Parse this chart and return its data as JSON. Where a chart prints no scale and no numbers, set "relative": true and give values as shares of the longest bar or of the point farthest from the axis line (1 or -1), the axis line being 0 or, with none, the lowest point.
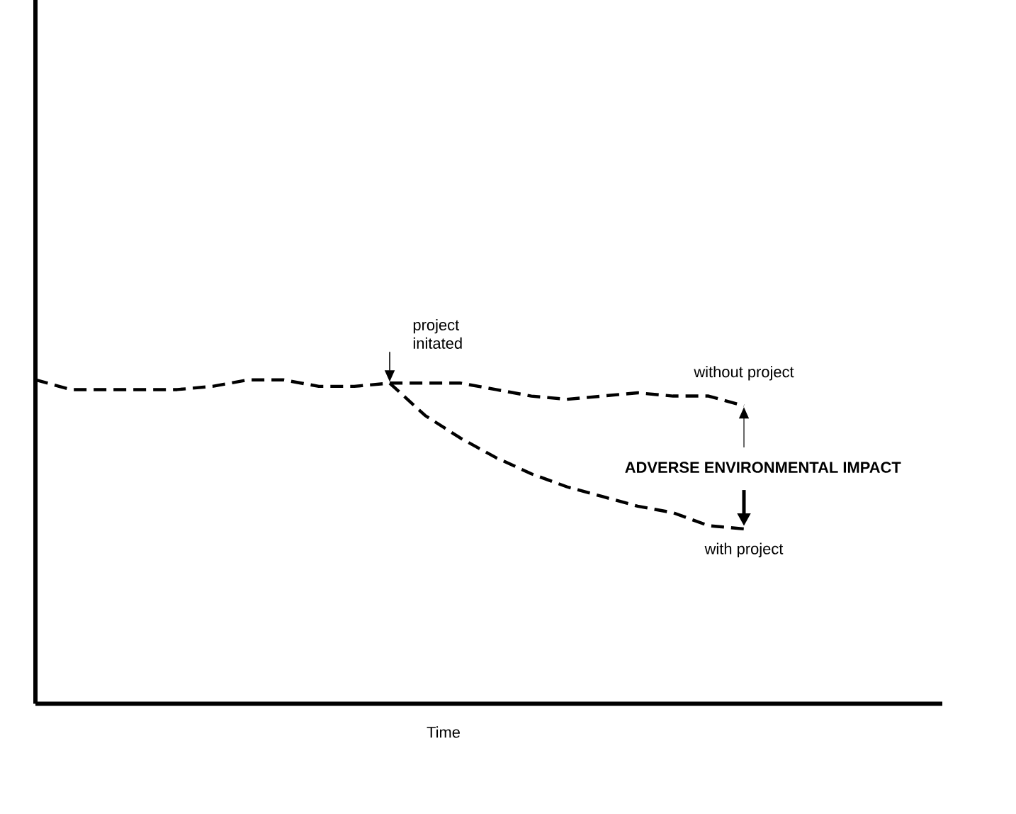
{
  "chart_data": {
    "type": "line",
    "relative": true,
    "xlabel": "Time",
    "line_style": "dashed",
    "marker": "none",
    "categories": [
      null,
      null,
      null,
      null,
      null,
      null,
      null,
      null,
      null,
      null,
      null,
      null,
      null,
      null,
      null,
      null,
      null,
      null,
      null,
      null,
      null
    ],
    "series": [
      {
        "name": "without project",
        "color": "#000000",
        "values": [
          1.0,
          0.97,
          0.97,
          0.97,
          0.97,
          0.98,
          1.0,
          1.0,
          0.98,
          0.98,
          0.99,
          0.99,
          0.99,
          0.97,
          0.95,
          0.94,
          0.95,
          0.96,
          0.95,
          0.95,
          0.92
        ]
      },
      {
        "name": "with project",
        "color": "#000000",
        "values": [
          null,
          null,
          null,
          null,
          null,
          null,
          null,
          null,
          null,
          null,
          0.99,
          0.89,
          0.82,
          0.76,
          0.71,
          0.67,
          0.64,
          0.61,
          0.59,
          0.55,
          0.54
        ]
      }
    ],
    "annotations": [
      "project initated",
      "ADVERSE ENVIRONMENTAL IMPACT"
    ]
  }
}
